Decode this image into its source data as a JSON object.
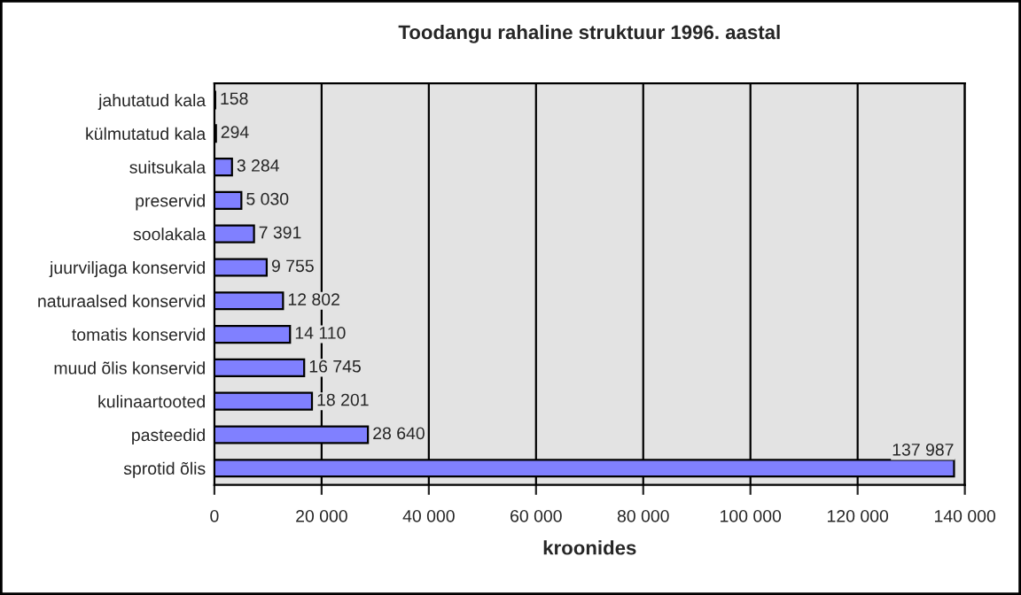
{
  "chart_data": {
    "type": "bar",
    "orientation": "horizontal",
    "title": "Toodangu rahaline struktuur 1996. aastal",
    "xlabel": "kroonides",
    "categories": [
      "jahutatud kala",
      "külmutatud kala",
      "suitsukala",
      "preservid",
      "soolakala",
      "juurviljaga konservid",
      "naturaalsed konservid",
      "tomatis konservid",
      "muud õlis konservid",
      "kulinaartooted",
      "pasteedid",
      "sprotid õlis"
    ],
    "values": [
      158,
      294,
      3284,
      5030,
      7391,
      9755,
      12802,
      14110,
      16745,
      18201,
      28640,
      137987
    ],
    "value_labels": [
      "158",
      "294",
      "3 284",
      "5 030",
      "7 391",
      "9 755",
      "12 802",
      "14 110",
      "16 745",
      "18 201",
      "28 640",
      "137 987"
    ],
    "color": "#8080ff",
    "xlim": [
      0,
      140000
    ],
    "xticks": [
      0,
      {
        "value": 20000,
        "label": "20 000"
      },
      {
        "value": 40000,
        "label": "40 000"
      },
      {
        "value": 60000,
        "label": "60 000"
      },
      {
        "value": 80000,
        "label": "80 000"
      },
      {
        "value": 100000,
        "label": "100 000"
      },
      {
        "value": 120000,
        "label": "120 000"
      },
      {
        "value": 140000,
        "label": "140 000"
      }
    ],
    "grid": "x",
    "legend": false
  }
}
